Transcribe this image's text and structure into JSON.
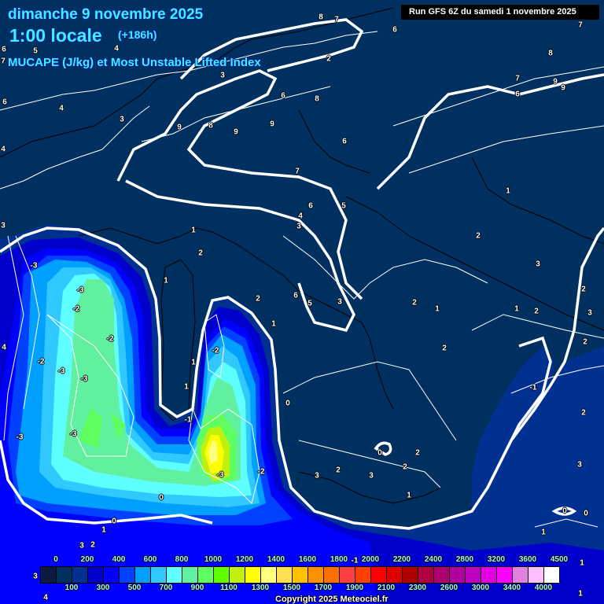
{
  "header": {
    "date": "dimanche 9 novembre 2025",
    "time": "1:00 locale",
    "lead": "(+186h)",
    "parameter": "MUCAPE (J/kg) et Most Unstable Lifted Index",
    "run": "Run GFS 6Z du samedi 1 novembre 2025"
  },
  "colorbar": {
    "labels": [
      "0",
      "100",
      "200",
      "300",
      "400",
      "500",
      "600",
      "700",
      "800",
      "900",
      "1000",
      "1100",
      "1200",
      "1300",
      "1400",
      "1500",
      "1600",
      "1700",
      "1800",
      "1900",
      "2000",
      "2100",
      "2200",
      "2300",
      "2400",
      "2600",
      "2800",
      "3000",
      "3200",
      "3400",
      "3600",
      "4000",
      "4500"
    ],
    "colors": [
      "#0a1a40",
      "#003060",
      "#003090",
      "#0000cc",
      "#0000ff",
      "#0040ff",
      "#00a0ff",
      "#30c8ff",
      "#60ffff",
      "#60f0a0",
      "#60ff60",
      "#60ff00",
      "#c0f010",
      "#ffff00",
      "#ffff80",
      "#ffe050",
      "#ffc000",
      "#ff9000",
      "#ff7000",
      "#ff4040",
      "#ff4000",
      "#ff0000",
      "#e00000",
      "#b00000",
      "#b00040",
      "#b00070",
      "#b000a0",
      "#c000c0",
      "#e000e0",
      "#ff00ff",
      "#e080e0",
      "#ffc0ff",
      "#ffffff"
    ]
  },
  "contour_labels": [
    "8",
    "7",
    "4",
    "6",
    "5",
    "7",
    "2",
    "3",
    "6",
    "7",
    "8",
    "7",
    "9",
    "9",
    "6",
    "6",
    "8",
    "6",
    "4",
    "3",
    "9",
    "8",
    "9",
    "9",
    "4",
    "6",
    "7",
    "6",
    "5",
    "4",
    "3",
    "1",
    "3",
    "1",
    "2",
    "2",
    "3",
    "1",
    "-3",
    "-3",
    "-2",
    "6",
    "5",
    "3",
    "2",
    "2",
    "1",
    "1",
    "2",
    "2",
    "3",
    "1",
    "-2",
    "-2",
    "2",
    "2",
    "4",
    "-2",
    "-3",
    "1",
    "-3",
    "1",
    "-1",
    "0",
    "2",
    "-3",
    "-3",
    "-1",
    "0",
    "2",
    "-3",
    "-2",
    "3",
    "2",
    "3",
    "2",
    "1",
    "3",
    "0",
    "0",
    "0",
    "1",
    "0",
    "1",
    "2",
    "3",
    "3",
    "-1",
    "1",
    "1",
    "4"
  ],
  "copyright": "Copyright 2025 Meteociel.fr",
  "colors": {
    "background": "#003060",
    "title": "#40f0ff",
    "contour": "#ffffff",
    "coast": "#000000"
  }
}
